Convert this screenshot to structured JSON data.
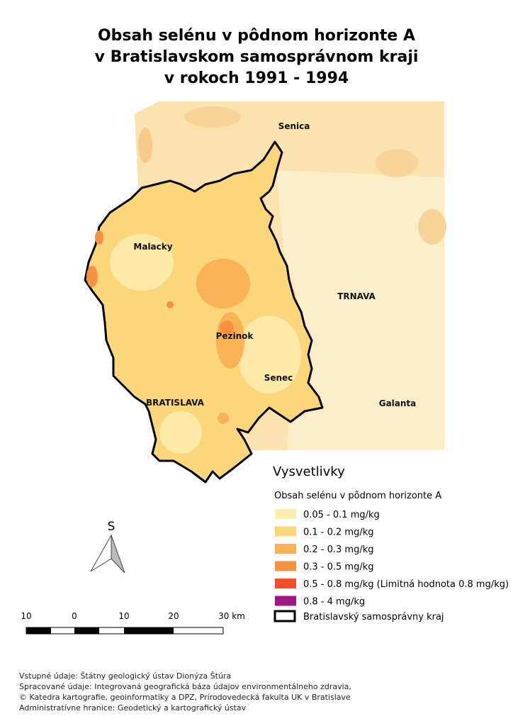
{
  "title": [
    "Obsah selénu v pôdnom horizonte A",
    "v Bratislavskom samosprávnom kraji",
    "v rokoch 1991 - 1994"
  ],
  "places": [
    "Senica",
    "Malacky",
    "TRNAVA",
    "Pezinok",
    "Senec",
    "BRATISLAVA",
    "Galanta"
  ],
  "legend": {
    "title": "Vysvetlivky",
    "subtitle": "Obsah selénu v pôdnom horizonte A",
    "items": [
      {
        "label": "0.05 - 0.1 mg/kg",
        "color": "#fdeeb0"
      },
      {
        "label": "0.1 - 0.2 mg/kg",
        "color": "#fbd67a"
      },
      {
        "label": "0.2 - 0.3 mg/kg",
        "color": "#f9b354"
      },
      {
        "label": "0.3 - 0.5 mg/kg",
        "color": "#f6923f"
      },
      {
        "label": "0.5 - 0.8 mg/kg (Limitná hodnota 0.8 mg/kg)",
        "color": "#f04e2c"
      },
      {
        "label": "0.8 - 4 mg/kg",
        "color": "#a2177e"
      }
    ],
    "boundary": "Bratislavský samosprávny kraj"
  },
  "north": "S",
  "scale": [
    "10",
    "0",
    "10",
    "20",
    "30 km"
  ],
  "footer": [
    "Vstupné údaje: Štátny geologický ústav Dionýza Štúra",
    "Spracované údaje: Integrovaná geografická báza údajov environmentálneho zdravia,",
    "© Katedra kartografie, geoinformatiky a DPZ, Prírodovedecká fakulta UK v Bratislave",
    "Administratívne hranice: Geodetický a kartografický ústav"
  ]
}
